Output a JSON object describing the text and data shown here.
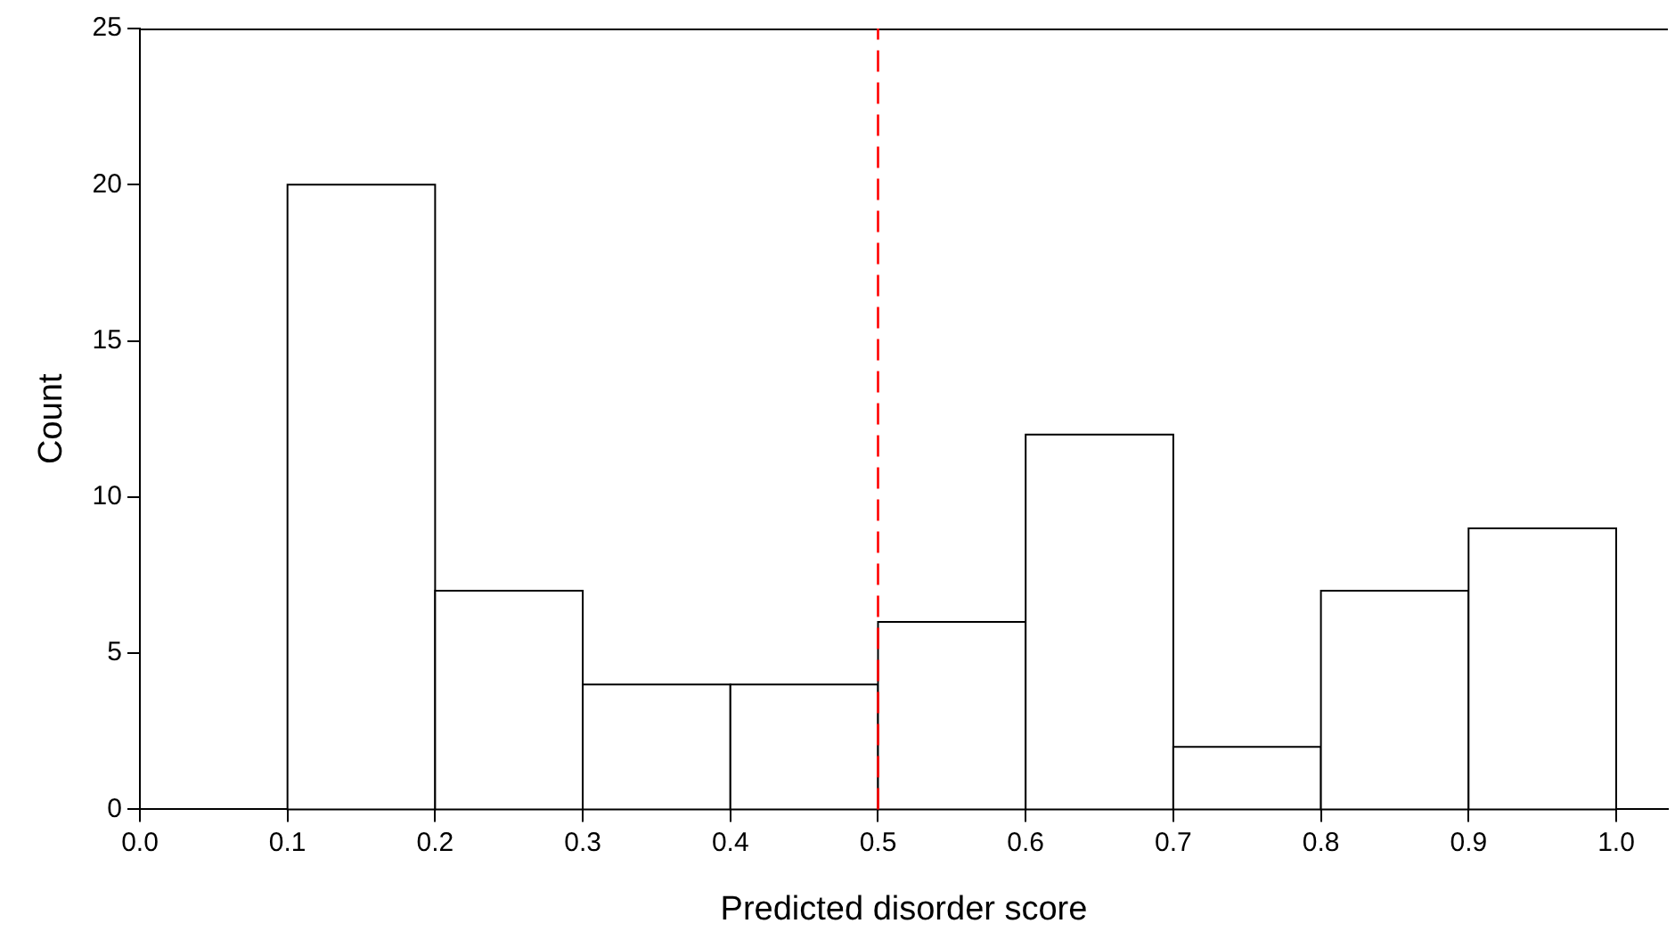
{
  "chart_data": {
    "type": "histogram",
    "xlabel": "Predicted disorder score",
    "ylabel": "Count",
    "bins": [
      0.1,
      0.2,
      0.3,
      0.4,
      0.5,
      0.6,
      0.7,
      0.8,
      0.9,
      1.0
    ],
    "values": [
      20,
      7,
      4,
      4,
      6,
      12,
      2,
      7,
      9
    ],
    "color": "#ffffff",
    "xlim": [
      0,
      1.035
    ],
    "xticks": [
      {
        "value": 0,
        "label": "0.0"
      },
      0.1,
      0.2,
      0.3,
      0.4,
      0.5,
      0.6,
      0.7,
      0.8,
      0.9,
      {
        "value": 1,
        "label": "1.0"
      }
    ],
    "ylim": [
      0,
      25
    ],
    "yticks": [
      0,
      5,
      10,
      15,
      20,
      25
    ],
    "ref_lines": [
      {
        "axis": "x",
        "value": 0.5,
        "color": "#ff0000",
        "line_style": "dashed"
      }
    ],
    "grid": false,
    "legend": false
  }
}
